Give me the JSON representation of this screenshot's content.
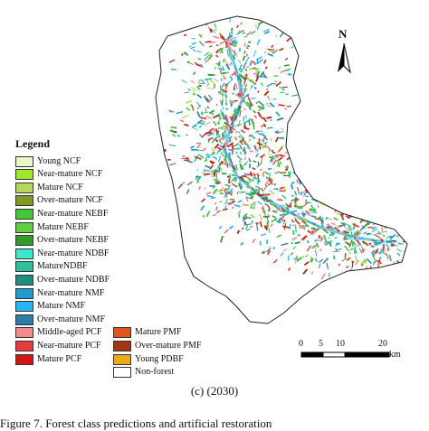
{
  "legend": {
    "title": "Legend",
    "items": [
      {
        "label": "Young NCF",
        "color": "#e9f9c3"
      },
      {
        "label": "Near-mature NCF",
        "color": "#9fe82a"
      },
      {
        "label": "Mature NCF",
        "color": "#b4d95a"
      },
      {
        "label": "Over-mature NCF",
        "color": "#7f9a1f"
      },
      {
        "label": "Near-mature NEBF",
        "color": "#41c936"
      },
      {
        "label": "Mature NEBF",
        "color": "#5fcf40"
      },
      {
        "label": "Over-mature NEBF",
        "color": "#2e9b2a"
      },
      {
        "label": "Near-mature NDBF",
        "color": "#3fe7c9"
      },
      {
        "label": "MatureNDBF",
        "color": "#2fbf9a"
      },
      {
        "label": "Over-mature NDBF",
        "color": "#1e8e83"
      },
      {
        "label": "Near-mature NMF",
        "color": "#1f9bd2"
      },
      {
        "label": "Mature NMF",
        "color": "#29b6f0"
      },
      {
        "label": "Over-mature NMF",
        "color": "#2a7ea5"
      },
      {
        "label": "Middle-aged PCF",
        "color": "#f28b8b"
      },
      {
        "label": "Near-mature PCF",
        "color": "#e63c3c"
      },
      {
        "label": "Mature PCF",
        "color": "#d21414"
      },
      {
        "label": "Mature PMF",
        "color": "#e0531a"
      },
      {
        "label": "Over-mature PMF",
        "color": "#a3360f"
      },
      {
        "label": "Young PDBF",
        "color": "#f0a81b"
      },
      {
        "label": "Non-forest",
        "color": "#ffffff"
      }
    ]
  },
  "north_arrow": {
    "letter": "N"
  },
  "scale_bar": {
    "ticks": [
      "0",
      "5",
      "10",
      "20"
    ],
    "unit": "km"
  },
  "caption": {
    "text": "(c) (2030)"
  },
  "figure_line": {
    "text": "Figure 7. Forest class predictions and artificial restoration"
  }
}
